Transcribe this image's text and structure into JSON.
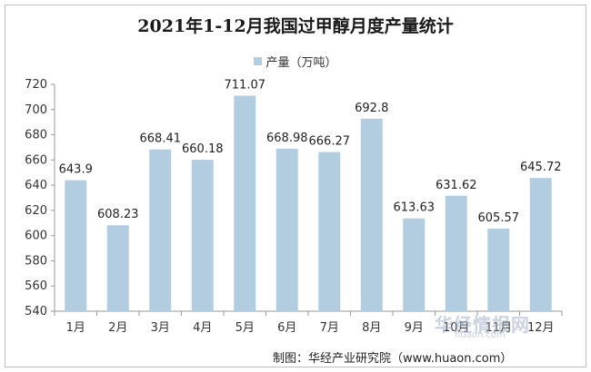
{
  "chart_data": {
    "type": "bar",
    "title": "2021年1-12月我国过甲醇月度产量统计",
    "categories": [
      "1月",
      "2月",
      "3月",
      "4月",
      "5月",
      "6月",
      "7月",
      "8月",
      "9月",
      "10月",
      "11月",
      "12月"
    ],
    "series": [
      {
        "name": "产量（万吨）",
        "values": [
          643.9,
          608.23,
          668.41,
          660.18,
          711.07,
          668.98,
          666.27,
          692.8,
          613.63,
          631.62,
          605.57,
          645.72
        ],
        "labels": [
          "643.9",
          "608.23",
          "668.41",
          "660.18",
          "711.07",
          "668.98",
          "666.27",
          "692.8",
          "613.63",
          "631.62",
          "605.57",
          "645.72"
        ]
      }
    ],
    "ylim": [
      540,
      720
    ],
    "yticks": [
      540,
      560,
      580,
      600,
      620,
      640,
      660,
      680,
      700,
      720
    ],
    "legend_position": "top-center",
    "grid": false,
    "bar_color": "#b3cde0"
  },
  "footer": {
    "credit": "制图：华经产业研究院（www.huaon.com）",
    "watermark": "华经情报网",
    "watermark_sub": "huaon.com"
  }
}
